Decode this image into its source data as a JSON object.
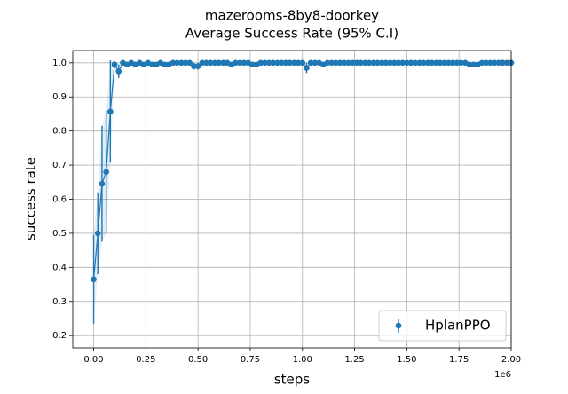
{
  "chart_data": {
    "type": "errorbar",
    "title": "mazerooms-8by8-doorkey",
    "subtitle": "Average Success Rate (95% C.I)",
    "x_label": "steps",
    "y_label": "success rate",
    "x_offset_label": "1e6",
    "x": [
      0,
      20000,
      40000,
      60000,
      80000,
      100000,
      120000,
      140000,
      160000,
      180000,
      200000,
      220000,
      240000,
      260000,
      280000,
      300000,
      320000,
      340000,
      360000,
      380000,
      400000,
      420000,
      440000,
      460000,
      480000,
      500000,
      520000,
      540000,
      560000,
      580000,
      600000,
      620000,
      640000,
      660000,
      680000,
      700000,
      720000,
      740000,
      760000,
      780000,
      800000,
      820000,
      840000,
      860000,
      880000,
      900000,
      920000,
      940000,
      960000,
      980000,
      1000000,
      1020000,
      1040000,
      1060000,
      1080000,
      1100000,
      1120000,
      1140000,
      1160000,
      1180000,
      1200000,
      1220000,
      1240000,
      1260000,
      1280000,
      1300000,
      1320000,
      1340000,
      1360000,
      1380000,
      1400000,
      1420000,
      1440000,
      1460000,
      1480000,
      1500000,
      1520000,
      1540000,
      1560000,
      1580000,
      1600000,
      1620000,
      1640000,
      1660000,
      1680000,
      1700000,
      1720000,
      1740000,
      1760000,
      1780000,
      1800000,
      1820000,
      1840000,
      1860000,
      1880000,
      1900000,
      1920000,
      1940000,
      1960000,
      1980000,
      2000000
    ],
    "series": [
      {
        "name": "HplanPPO",
        "color": "#1f77b4",
        "values": [
          0.365,
          0.5,
          0.645,
          0.68,
          0.857,
          0.995,
          0.975,
          1,
          0.995,
          1,
          0.995,
          1,
          0.995,
          1,
          0.995,
          0.995,
          1,
          0.995,
          0.995,
          1,
          1,
          1,
          1,
          1,
          0.99,
          0.99,
          1,
          1,
          1,
          1,
          1,
          1,
          1,
          0.995,
          1,
          1,
          1,
          1,
          0.995,
          0.995,
          1,
          1,
          1,
          1,
          1,
          1,
          1,
          1,
          1,
          1,
          1,
          0.985,
          1,
          1,
          1,
          0.995,
          1,
          1,
          1,
          1,
          1,
          1,
          1,
          1,
          1,
          1,
          1,
          1,
          1,
          1,
          1,
          1,
          1,
          1,
          1,
          1,
          1,
          1,
          1,
          1,
          1,
          1,
          1,
          1,
          1,
          1,
          1,
          1,
          1,
          1,
          0.995,
          0.995,
          0.995,
          1,
          1,
          1,
          1,
          1,
          1,
          1,
          1
        ],
        "errors": [
          0.13,
          0.12,
          0.17,
          0.18,
          0.15,
          0.01,
          0.02,
          0,
          0.005,
          0,
          0.005,
          0,
          0.005,
          0,
          0.005,
          0.005,
          0,
          0.005,
          0.005,
          0,
          0,
          0,
          0,
          0,
          0.01,
          0.01,
          0,
          0,
          0,
          0,
          0,
          0,
          0,
          0.005,
          0,
          0,
          0,
          0,
          0.005,
          0.005,
          0,
          0,
          0,
          0,
          0,
          0,
          0,
          0,
          0,
          0,
          0,
          0.015,
          0,
          0,
          0,
          0.005,
          0,
          0,
          0,
          0,
          0,
          0,
          0,
          0,
          0,
          0,
          0,
          0,
          0,
          0,
          0,
          0,
          0,
          0,
          0,
          0,
          0,
          0,
          0,
          0,
          0,
          0,
          0,
          0,
          0,
          0,
          0,
          0,
          0,
          0,
          0.005,
          0.005,
          0.005,
          0,
          0,
          0,
          0,
          0,
          0,
          0,
          0
        ]
      }
    ],
    "xlim": [
      -100000,
      2000000
    ],
    "xticks": [
      {
        "value": 0,
        "label": "0.00"
      },
      {
        "value": 250000,
        "label": "0.25"
      },
      {
        "value": 500000,
        "label": "0.50"
      },
      {
        "value": 750000,
        "label": "0.75"
      },
      {
        "value": 1000000,
        "label": "1.00"
      },
      {
        "value": 1250000,
        "label": "1.25"
      },
      {
        "value": 1500000,
        "label": "1.50"
      },
      {
        "value": 1750000,
        "label": "1.75"
      },
      {
        "value": 2000000,
        "label": "2.00"
      }
    ],
    "ylim": [
      0.164,
      1.036
    ],
    "yticks": [
      0.2,
      0.3,
      0.4,
      0.5,
      0.6,
      0.7,
      0.8,
      0.9,
      {
        "value": 1,
        "label": "1.0"
      }
    ],
    "grid": true,
    "legend": "lower right"
  }
}
